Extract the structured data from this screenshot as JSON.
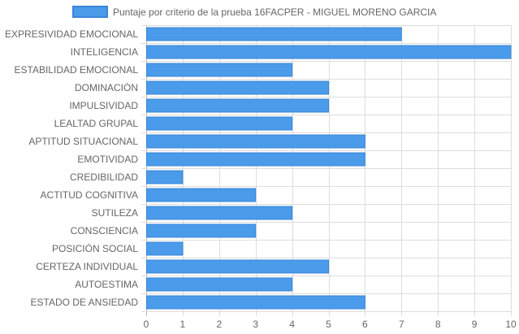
{
  "chart_data": {
    "type": "bar",
    "orientation": "horizontal",
    "categories": [
      "EXPRESIVIDAD EMOCIONAL",
      "INTELIGENCIA",
      "ESTABILIDAD EMOCIONAL",
      "DOMINACIÓN",
      "IMPULSIVIDAD",
      "LEALTAD GRUPAL",
      "APTITUD SITUACIONAL",
      "EMOTIVIDAD",
      "CREDIBILIDAD",
      "ACTITUD COGNITIVA",
      "SUTILEZA",
      "CONSCIENCIA",
      "POSICIÓN SOCIAL",
      "CERTEZA INDIVIDUAL",
      "AUTOESTIMA",
      "ESTADO DE ANSIEDAD"
    ],
    "series": [
      {
        "name": "Puntaje por criterio de la prueba 16FACPER - MIGUEL MORENO GARCIA",
        "values": [
          7,
          10,
          4,
          5,
          5,
          4,
          6,
          6,
          1,
          3,
          4,
          3,
          1,
          5,
          4,
          6
        ],
        "color": "#4a9bea",
        "border_color": "#3a86d8"
      }
    ],
    "xlim": [
      0,
      10
    ],
    "x_ticks": [
      "0",
      "1",
      "2",
      "3",
      "4",
      "5",
      "6",
      "7",
      "8",
      "9",
      "10"
    ],
    "grid": true,
    "legend_position": "top",
    "grid_color": "#dddddd"
  }
}
